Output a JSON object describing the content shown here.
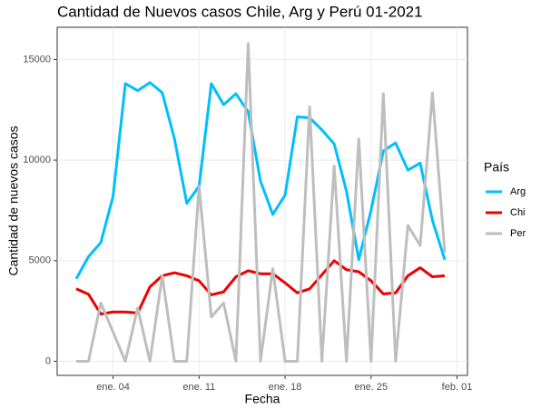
{
  "chart_data": {
    "type": "line",
    "title": "Cantidad de Nuevos casos Chile, Arg y Perú 01-2021",
    "x_label": "Fecha",
    "y_label": "Cantidad de nuevos casos",
    "legend_title": "País",
    "legend": "right",
    "grid": true,
    "x": [
      1,
      2,
      3,
      4,
      5,
      6,
      7,
      8,
      9,
      10,
      11,
      12,
      13,
      14,
      15,
      16,
      17,
      18,
      19,
      20,
      21,
      22,
      23,
      24,
      25,
      26,
      27,
      28,
      29,
      30,
      31
    ],
    "xlim": [
      -0.55,
      32.85
    ],
    "xticks": [
      {
        "value": 4,
        "label": "ene. 04"
      },
      {
        "value": 11,
        "label": "ene. 11"
      },
      {
        "value": 18,
        "label": "ene. 18"
      },
      {
        "value": 25,
        "label": "ene. 25"
      },
      {
        "value": 32,
        "label": "feb. 01"
      }
    ],
    "ylim": [
      -700,
      16600
    ],
    "yticks": [
      0,
      5000,
      10000,
      15000
    ],
    "series": [
      {
        "name": "Arg",
        "color": "#00bfff",
        "values": [
          4100,
          5200,
          5900,
          8200,
          13800,
          13450,
          13850,
          13350,
          11050,
          7850,
          8700,
          13800,
          12750,
          13300,
          12400,
          8950,
          7300,
          8250,
          12150,
          12100,
          11500,
          10800,
          8450,
          5050,
          7500,
          10450,
          10850,
          9500,
          9850,
          7000,
          5050
        ]
      },
      {
        "name": "Chi",
        "color": "#ee0000",
        "values": [
          3600,
          3330,
          2350,
          2450,
          2450,
          2400,
          3700,
          4250,
          4400,
          4250,
          4000,
          3300,
          3450,
          4200,
          4500,
          4350,
          4350,
          3900,
          3400,
          3600,
          4300,
          5000,
          4550,
          4450,
          4000,
          3350,
          3400,
          4250,
          4650,
          4200,
          4250
        ]
      },
      {
        "name": "Per",
        "color": "#bebebe",
        "values": [
          0,
          0,
          2900,
          1450,
          0,
          2650,
          0,
          4250,
          0,
          0,
          8700,
          2200,
          2900,
          0,
          15800,
          0,
          4600,
          0,
          0,
          12650,
          0,
          9700,
          0,
          11050,
          0,
          13300,
          0,
          6750,
          5750,
          13350,
          5400
        ]
      }
    ]
  }
}
